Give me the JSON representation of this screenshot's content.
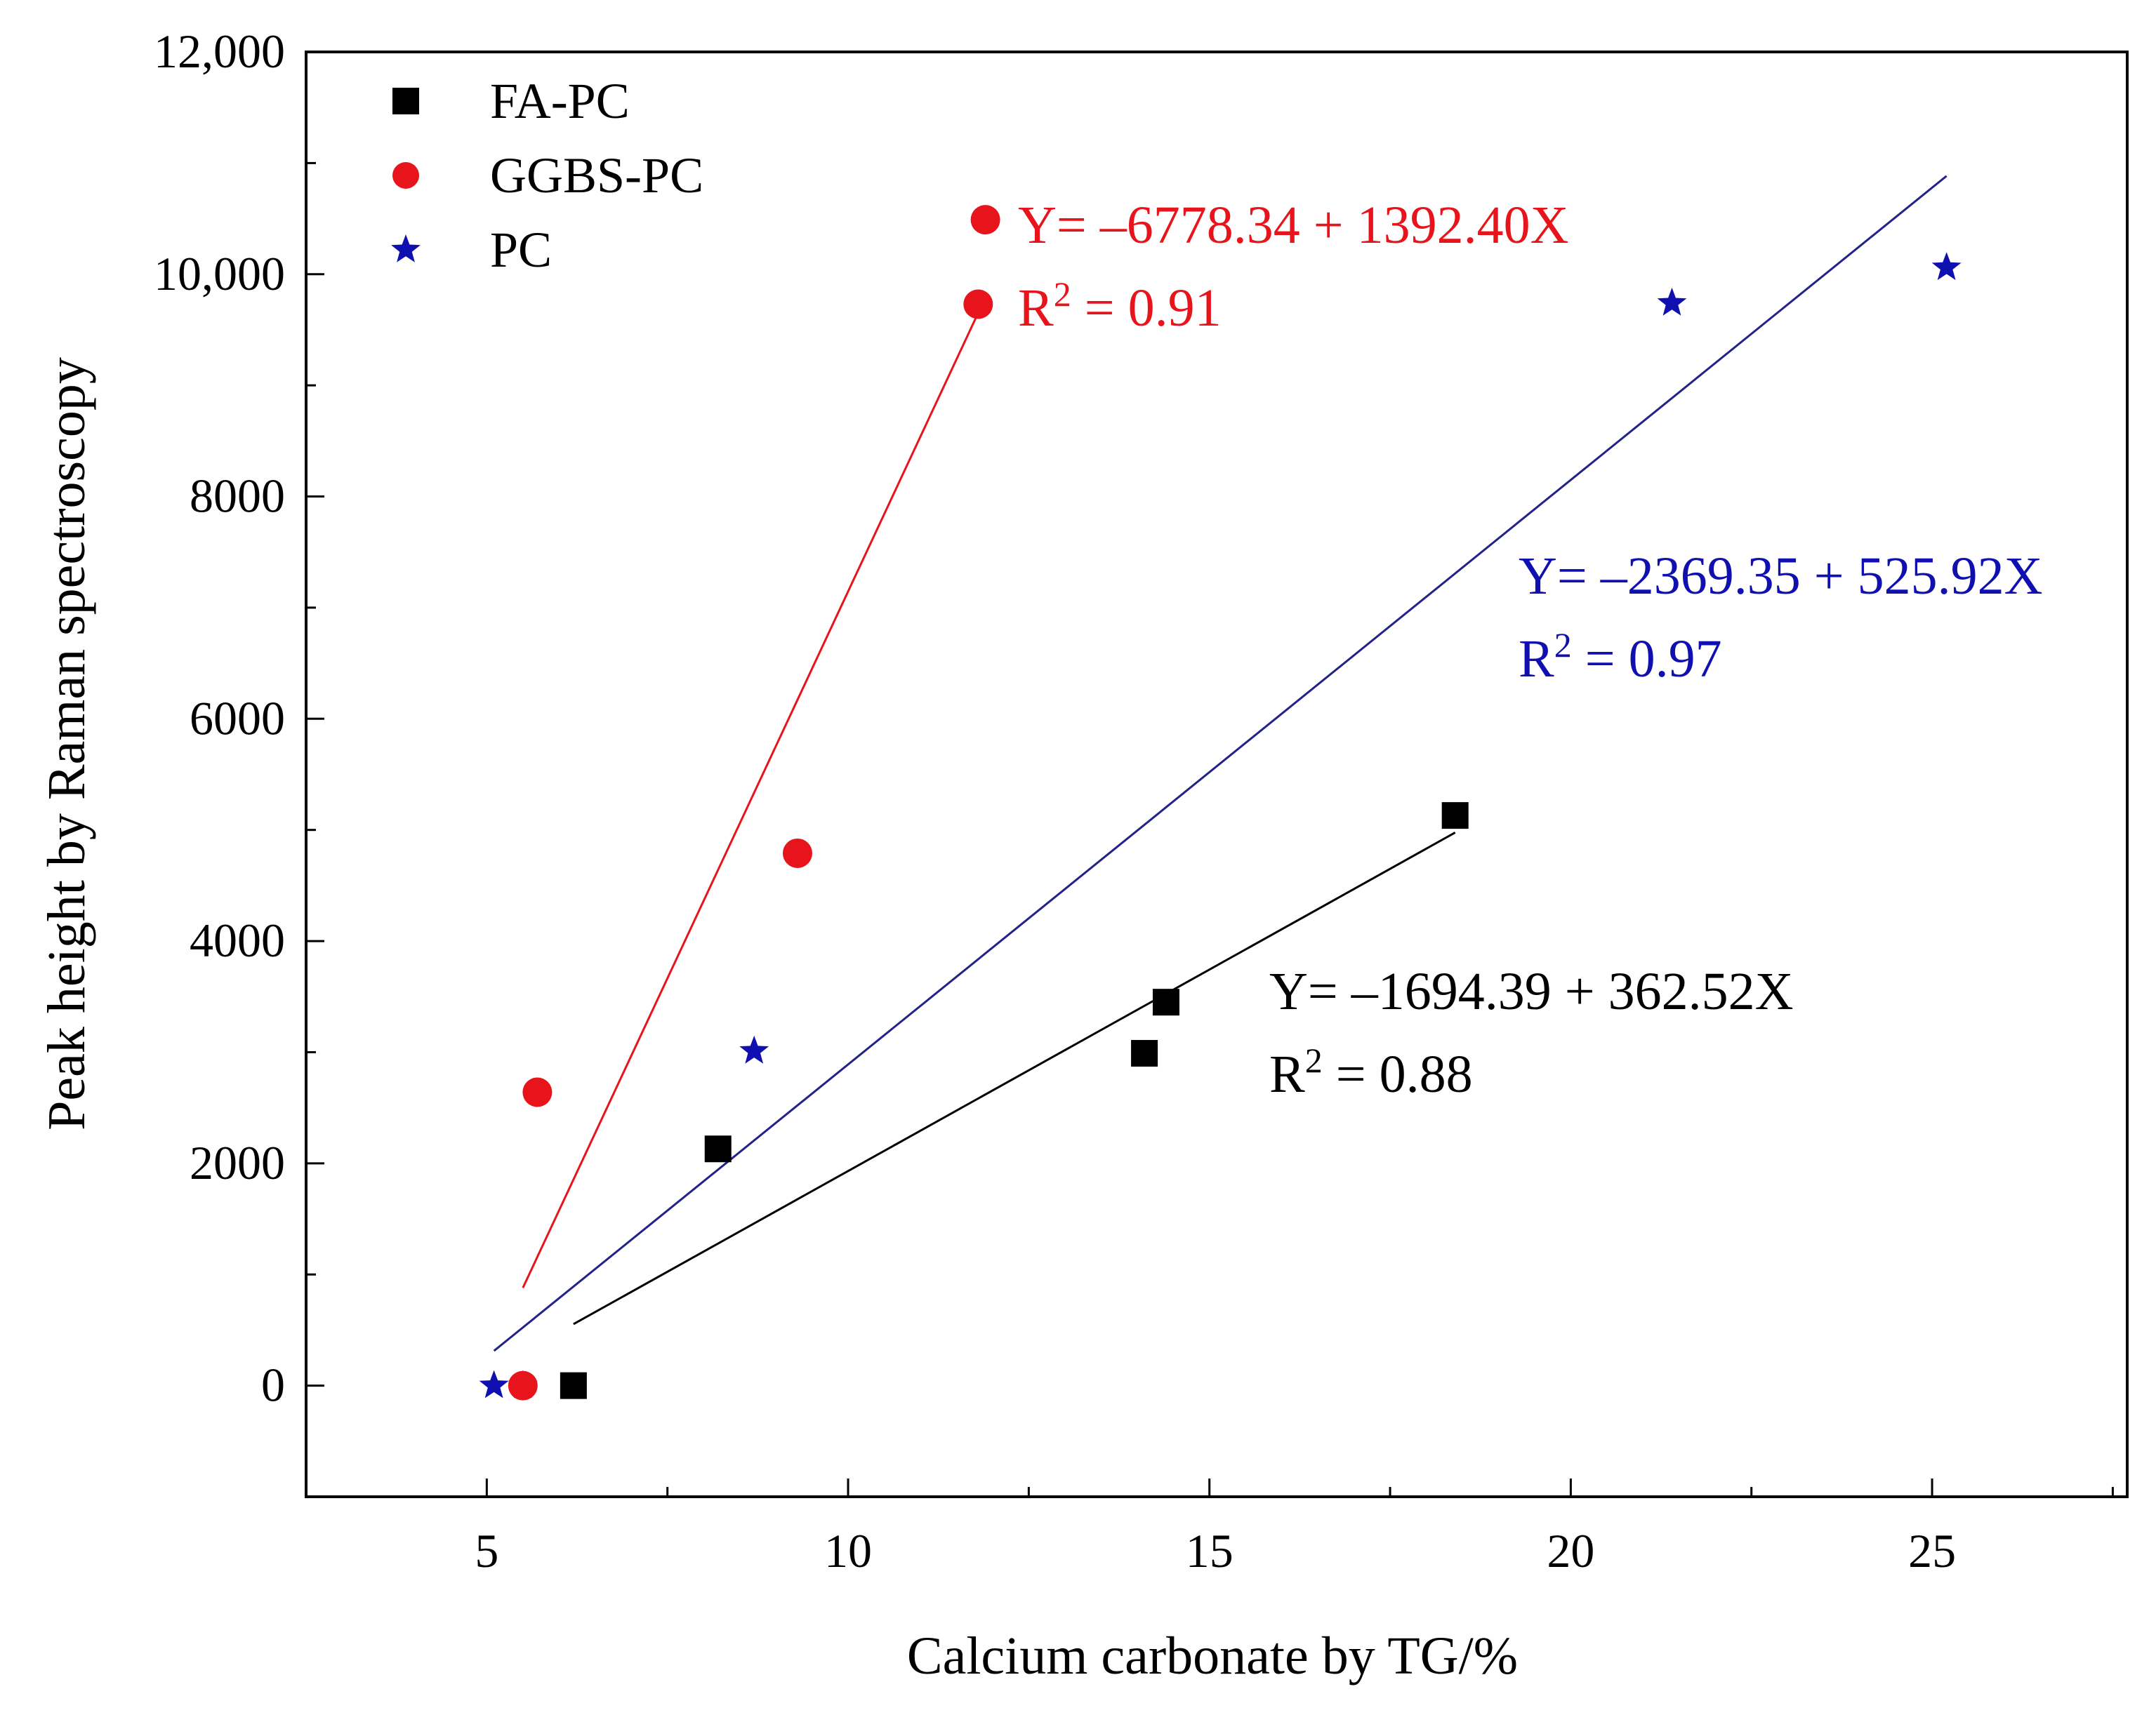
{
  "chart_data": {
    "type": "scatter",
    "title": "",
    "xlabel": "Calcium carbonate by TG/%",
    "ylabel": "Peak height by Raman spectroscopy",
    "xlim": [
      2.5,
      27.7
    ],
    "ylim": [
      -1000,
      12000
    ],
    "x_ticks": [
      5,
      10,
      15,
      20,
      25
    ],
    "x_tick_labels": [
      "5",
      "10",
      "15",
      "20",
      "25"
    ],
    "y_ticks": [
      0,
      2000,
      4000,
      6000,
      8000,
      10000,
      12000
    ],
    "y_tick_labels": [
      "0",
      "2000",
      "4000",
      "6000",
      "8000",
      "10,000",
      "12,000"
    ],
    "legend_position": "top-left",
    "series": [
      {
        "name": "FA-PC",
        "marker": "square",
        "color": "#000000",
        "points": [
          [
            6.2,
            0
          ],
          [
            8.2,
            2130
          ],
          [
            14.1,
            2990
          ],
          [
            14.4,
            3450
          ],
          [
            18.4,
            5130
          ]
        ],
        "fit": {
          "intercept": -1694.39,
          "slope": 362.52,
          "x_range": [
            6.2,
            18.4
          ]
        },
        "equation": "Y= –1694.39 + 362.52X",
        "r2_label": "R",
        "r2_value": " = 0.88"
      },
      {
        "name": "GGBS-PC",
        "marker": "circle",
        "color": "#e8141c",
        "points": [
          [
            5.5,
            0
          ],
          [
            5.7,
            2640
          ],
          [
            9.3,
            4790
          ],
          [
            11.8,
            9730
          ],
          [
            11.9,
            10490
          ]
        ],
        "fit": {
          "intercept": -6778.34,
          "slope": 1392.4,
          "x_range": [
            5.5,
            11.8
          ]
        },
        "equation": "Y= –6778.34 + 1392.40X",
        "r2_label": "R",
        "r2_value": " = 0.91"
      },
      {
        "name": "PC",
        "marker": "star",
        "color": "#1010b0",
        "points": [
          [
            5.1,
            0
          ],
          [
            5.5,
            0
          ],
          [
            8.7,
            3010
          ],
          [
            21.4,
            9740
          ],
          [
            25.2,
            10060
          ]
        ],
        "fit": {
          "intercept": -2369.35,
          "slope": 525.92,
          "x_range": [
            5.1,
            25.2
          ]
        },
        "equation": "Y= –2369.35 + 525.92X",
        "r2_label": "R",
        "r2_value": " = 0.97"
      }
    ]
  }
}
